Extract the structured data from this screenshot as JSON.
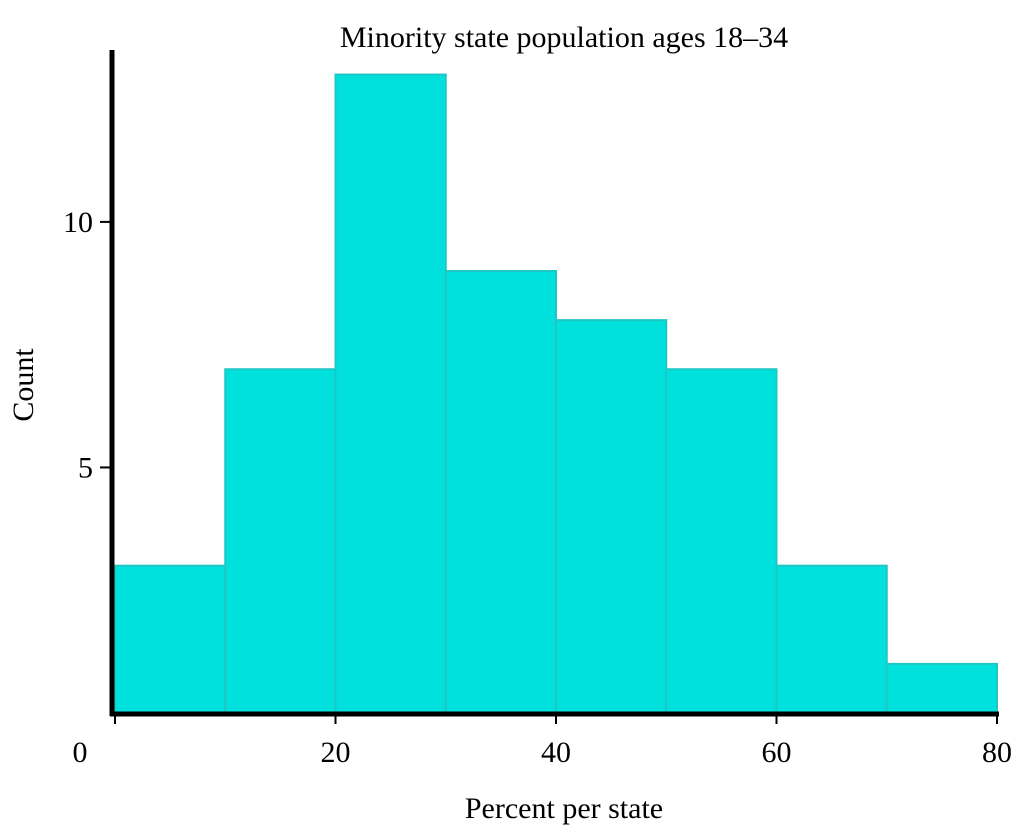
{
  "chart_data": {
    "type": "bar",
    "title": "Minority state population ages 18–34",
    "xlabel": "Percent per state",
    "ylabel": "Count",
    "bins": [
      {
        "x0": 0,
        "x1": 10,
        "count": 3
      },
      {
        "x0": 10,
        "x1": 20,
        "count": 7
      },
      {
        "x0": 20,
        "x1": 30,
        "count": 13
      },
      {
        "x0": 30,
        "x1": 40,
        "count": 9
      },
      {
        "x0": 40,
        "x1": 50,
        "count": 8
      },
      {
        "x0": 50,
        "x1": 60,
        "count": 7
      },
      {
        "x0": 60,
        "x1": 70,
        "count": 3
      },
      {
        "x0": 70,
        "x1": 80,
        "count": 1
      }
    ],
    "xlim": [
      0,
      80
    ],
    "ylim": [
      0,
      13.5
    ],
    "x_ticks": [
      {
        "value": 0,
        "label": "0"
      },
      {
        "value": 20,
        "label": "20"
      },
      {
        "value": 40,
        "label": "40"
      },
      {
        "value": 60,
        "label": "60"
      },
      {
        "value": 80,
        "label": "80"
      }
    ],
    "y_ticks": [
      {
        "value": 5,
        "label": "5"
      },
      {
        "value": 10,
        "label": "10"
      }
    ],
    "grid": false,
    "bar_color": "#00e0dc",
    "bar_edge_color": "#1fc7c4"
  }
}
